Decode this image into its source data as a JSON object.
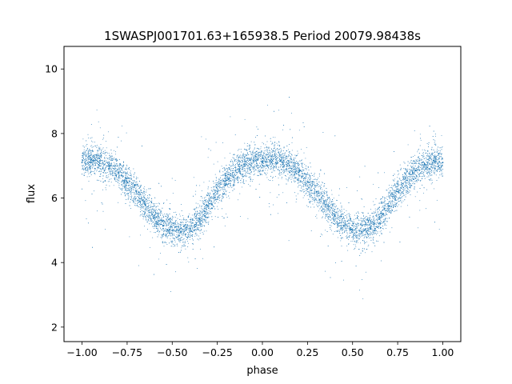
{
  "chart_data": {
    "type": "scatter",
    "title": "1SWASPJ001701.63+165938.5 Period 20079.98438s",
    "xlabel": "phase",
    "ylabel": "flux",
    "xlim": [
      -1.1,
      1.1
    ],
    "ylim": [
      1.55,
      10.7
    ],
    "xticks": [
      -1.0,
      -0.75,
      -0.5,
      -0.25,
      0.0,
      0.25,
      0.5,
      0.75,
      1.0
    ],
    "xtick_labels": [
      "−1.00",
      "−0.75",
      "−0.50",
      "−0.25",
      "0.00",
      "0.25",
      "0.50",
      "0.75",
      "1.00"
    ],
    "yticks": [
      2,
      4,
      6,
      8,
      10
    ],
    "ytick_labels": [
      "2",
      "4",
      "6",
      "8",
      "10"
    ],
    "grid": false,
    "legend": "none",
    "marker_color": "#1f77b4",
    "series": [
      {
        "x": [
          -1.0,
          -0.95,
          -0.9,
          -0.85,
          -0.8,
          -0.75,
          -0.7,
          -0.65,
          -0.6,
          -0.55,
          -0.5,
          -0.45,
          -0.4,
          -0.35,
          -0.3,
          -0.25,
          -0.2,
          -0.15,
          -0.1,
          -0.05,
          0.0,
          0.05,
          0.1,
          0.15,
          0.2,
          0.25,
          0.3,
          0.35,
          0.4,
          0.45,
          0.5,
          0.55,
          0.6,
          0.65,
          0.7,
          0.75,
          0.8,
          0.85,
          0.9,
          0.95,
          1.0
        ],
        "y": [
          7.1,
          7.2,
          7.15,
          7.0,
          6.8,
          6.5,
          6.2,
          5.8,
          5.45,
          5.15,
          5.0,
          4.95,
          5.05,
          5.35,
          5.75,
          6.2,
          6.55,
          6.85,
          7.05,
          7.15,
          7.1,
          7.2,
          7.15,
          7.0,
          6.8,
          6.5,
          6.2,
          5.8,
          5.45,
          5.15,
          5.0,
          4.95,
          5.05,
          5.35,
          5.75,
          6.2,
          6.55,
          6.85,
          7.05,
          7.15,
          7.1
        ]
      }
    ]
  }
}
